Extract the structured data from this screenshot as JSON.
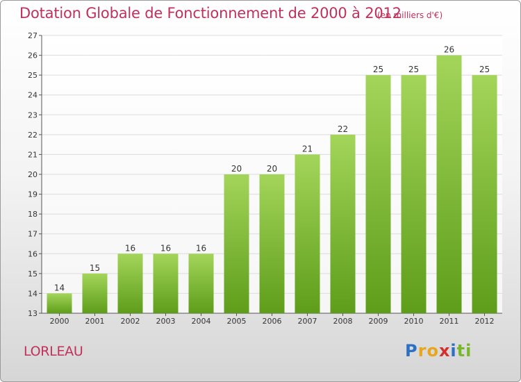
{
  "header": {
    "title": "Dotation Globale de Fonctionnement de 2000 à 2012",
    "subtitle": "(en milliers d'€)"
  },
  "footer": {
    "place": "LORLEAU",
    "logo": "Proxiti"
  },
  "colors": {
    "bar_top": "#a3d55a",
    "bar_bottom": "#5e9d1a",
    "title": "#c0305b",
    "grid": "#dcdcdc"
  },
  "chart_data": {
    "type": "bar",
    "title": "Dotation Globale de Fonctionnement de 2000 à 2012",
    "subtitle": "(en milliers d'€)",
    "categories": [
      "2000",
      "2001",
      "2002",
      "2003",
      "2004",
      "2005",
      "2006",
      "2007",
      "2008",
      "2009",
      "2010",
      "2011",
      "2012"
    ],
    "values": [
      14,
      15,
      16,
      16,
      16,
      20,
      20,
      21,
      22,
      25,
      25,
      26,
      25
    ],
    "ylim": [
      13,
      27
    ],
    "yticks": [
      13,
      14,
      15,
      16,
      17,
      18,
      19,
      20,
      21,
      22,
      23,
      24,
      25,
      26,
      27
    ],
    "grid": true,
    "data_labels": true
  }
}
